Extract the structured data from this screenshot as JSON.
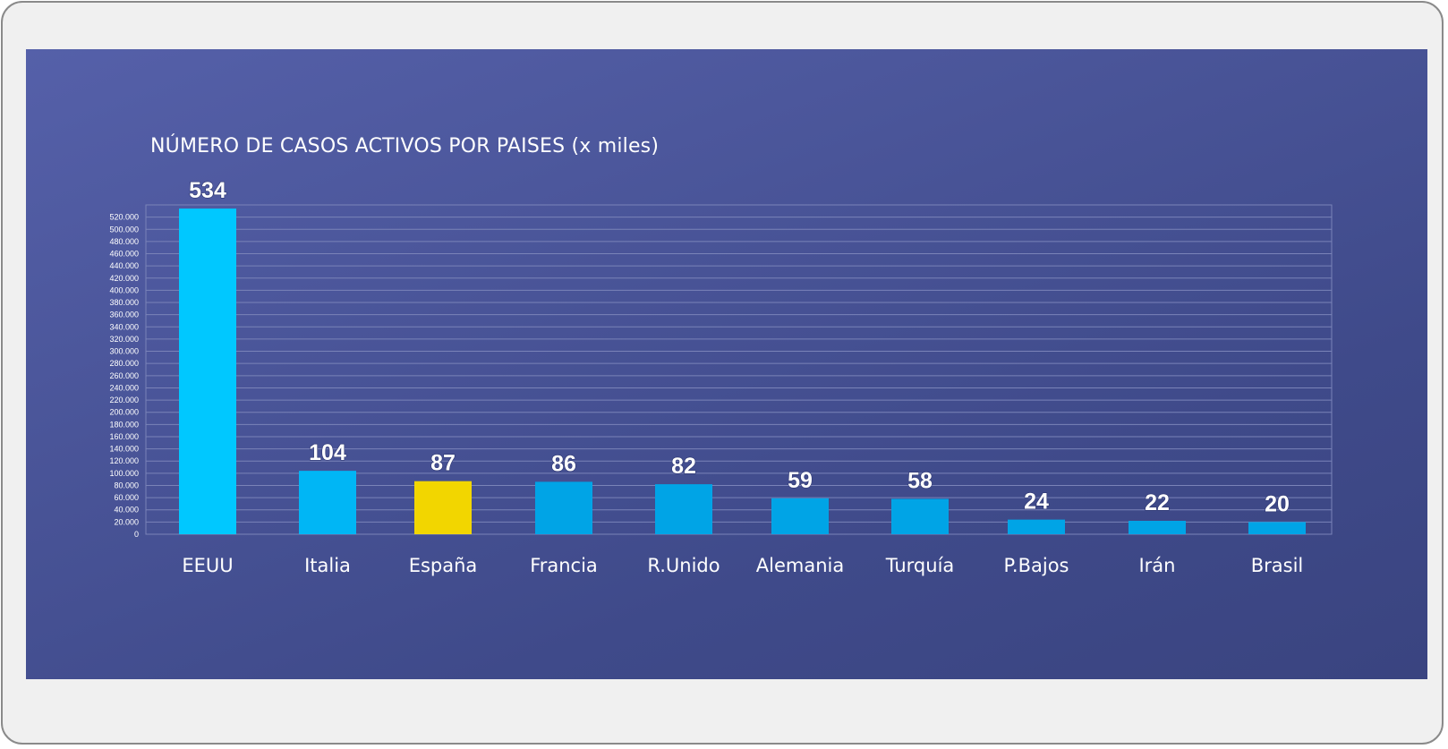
{
  "chart_data": {
    "type": "bar",
    "title": "NÚMERO DE CASOS ACTIVOS POR PAISES (x miles)",
    "xlabel": "",
    "ylabel": "",
    "categories": [
      "EEUU",
      "Italia",
      "España",
      "Francia",
      "R.Unido",
      "Alemania",
      "Turquía",
      "P.Bajos",
      "Irán",
      "Brasil"
    ],
    "values": [
      534,
      104,
      87,
      86,
      82,
      59,
      58,
      24,
      22,
      20
    ],
    "value_labels": [
      "534",
      "104",
      "87",
      "86",
      "82",
      "59",
      "58",
      "24",
      "22",
      "20"
    ],
    "y_tick_labels": [
      "0",
      "20.000",
      "40.000",
      "60.000",
      "80.000",
      "100.000",
      "120.000",
      "140.000",
      "160.000",
      "180.000",
      "200.000",
      "220.000",
      "240.000",
      "260.000",
      "280.000",
      "300.000",
      "320.000",
      "340.000",
      "360.000",
      "380.000",
      "400.000",
      "420.000",
      "440.000",
      "460.000",
      "480.000",
      "500.000",
      "520.000"
    ],
    "ylim": [
      0,
      540
    ],
    "grid": true,
    "legend": "none",
    "colors": {
      "bars": [
        "#00c8ff",
        "#00b6f5",
        "#f2d600",
        "#00a4e6",
        "#00a4e6",
        "#00a4e6",
        "#00a4e6",
        "#00a4e6",
        "#00a4e6",
        "#00a4e6"
      ],
      "grid": "#7a83b8",
      "background": "#4a5599"
    }
  }
}
